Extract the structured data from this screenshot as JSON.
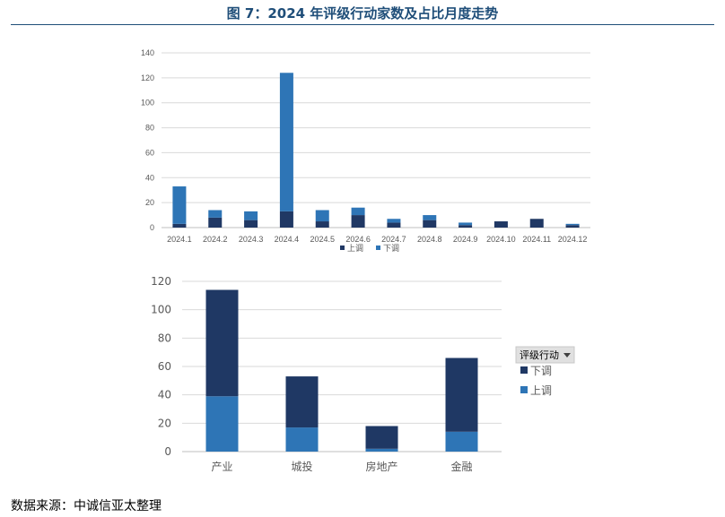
{
  "header": {
    "title": "图 7：2024 年评级行动家数及占比月度走势"
  },
  "footer": {
    "source": "数据来源：中诚信亚太整理"
  },
  "colors": {
    "title": "#1f4e79",
    "upgrade_top": "#203864",
    "downgrade_top": "#2e75b6",
    "dark_navy": "#1f3864",
    "mid_blue": "#2e75b6"
  },
  "chart_data": [
    {
      "type": "bar",
      "stacked": true,
      "categories": [
        "2024.1",
        "2024.2",
        "2024.3",
        "2024.4",
        "2024.5",
        "2024.6",
        "2024.7",
        "2024.8",
        "2024.9",
        "2024.10",
        "2024.11",
        "2024.12"
      ],
      "series": [
        {
          "name": "上调",
          "values": [
            3,
            8,
            6,
            13,
            5,
            10,
            4,
            6,
            2,
            5,
            7,
            2
          ]
        },
        {
          "name": "下调",
          "values": [
            30,
            6,
            7,
            111,
            9,
            6,
            3,
            4,
            2,
            0,
            0,
            1
          ]
        }
      ],
      "ylim": [
        0,
        140
      ],
      "yticks": [
        0,
        20,
        40,
        60,
        80,
        100,
        120,
        140
      ],
      "grid": true,
      "legend_position": "bottom"
    },
    {
      "type": "bar",
      "stacked": true,
      "categories": [
        "产业",
        "城投",
        "房地产",
        "金融"
      ],
      "series": [
        {
          "name": "上调",
          "values": [
            39,
            17,
            2,
            14
          ]
        },
        {
          "name": "下调",
          "values": [
            75,
            36,
            16,
            52
          ]
        }
      ],
      "ylim": [
        0,
        120
      ],
      "yticks": [
        0,
        20,
        40,
        60,
        80,
        100,
        120
      ],
      "grid": true,
      "legend_position": "right",
      "legend_title": "评级行动",
      "legend_order": [
        "下调",
        "上调"
      ]
    }
  ]
}
